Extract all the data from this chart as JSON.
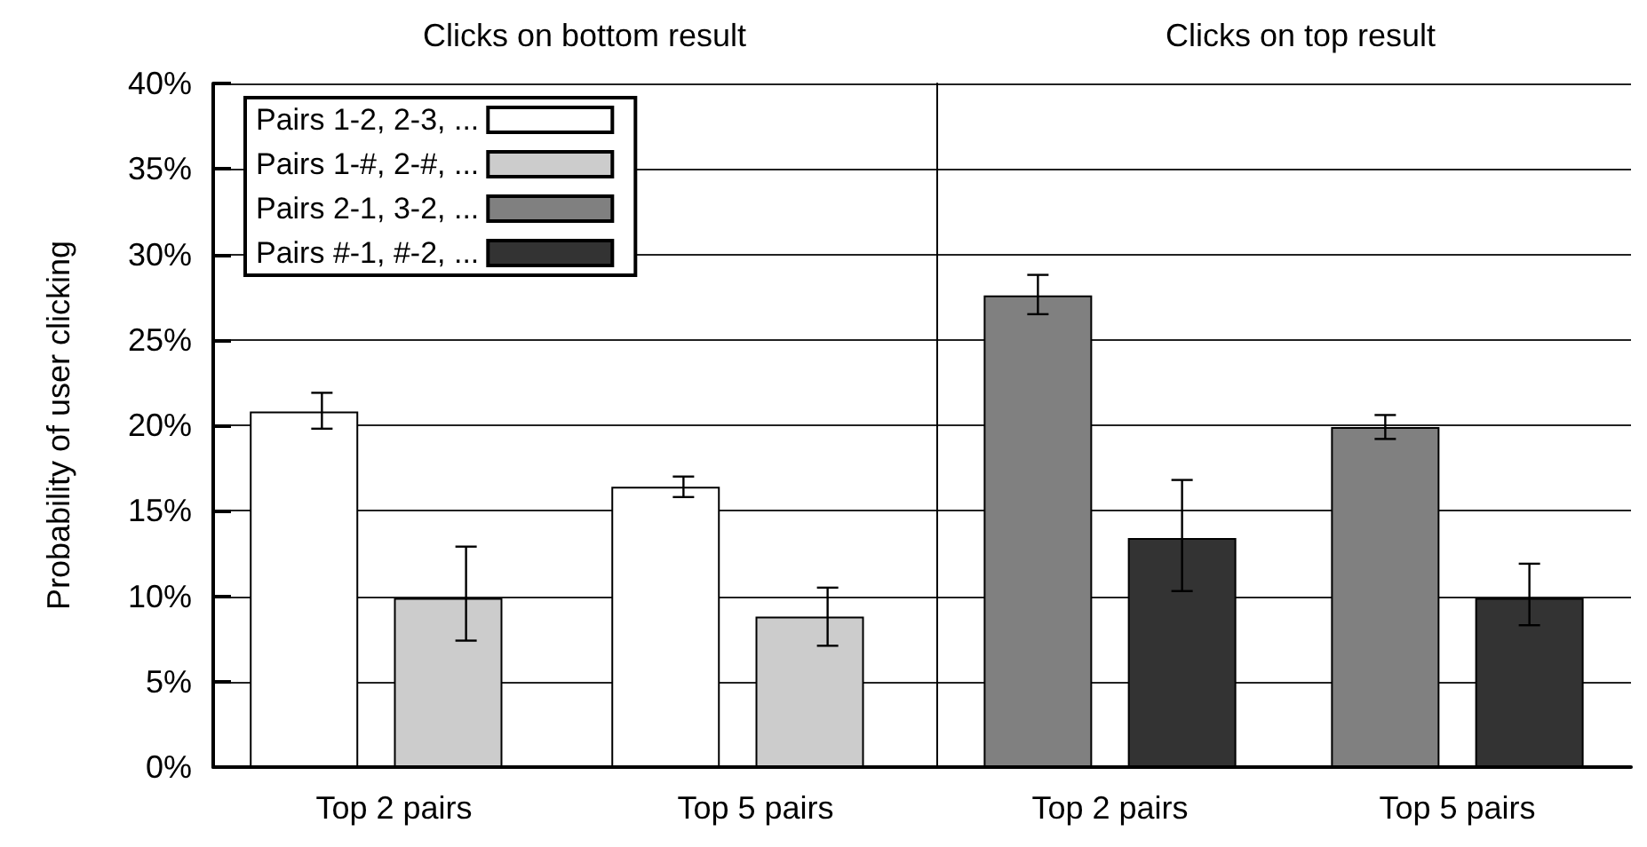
{
  "chart_data": [
    {
      "type": "bar",
      "title": "Clicks on bottom result",
      "ylabel": "Probability of user clicking",
      "categories": [
        "Top 2 pairs",
        "Top 5 pairs"
      ],
      "series": [
        {
          "name": "Pairs 1-2, 2-3, ...",
          "color": "#ffffff",
          "values": [
            20.8,
            16.4
          ],
          "errors": [
            [
              19.8,
              21.9
            ],
            [
              15.8,
              17.0
            ]
          ]
        },
        {
          "name": "Pairs 1-#, 2-#, ...",
          "color": "#cccccc",
          "values": [
            9.9,
            8.8
          ],
          "errors": [
            [
              7.4,
              12.9
            ],
            [
              7.1,
              10.5
            ]
          ]
        }
      ],
      "ylim": [
        0,
        40
      ],
      "yticks": [
        {
          "value": 0,
          "label": "0%"
        },
        {
          "value": 5,
          "label": "5%"
        },
        {
          "value": 10,
          "label": "10%"
        },
        {
          "value": 15,
          "label": "15%"
        },
        {
          "value": 20,
          "label": "20%"
        },
        {
          "value": 25,
          "label": "25%"
        },
        {
          "value": 30,
          "label": "30%"
        },
        {
          "value": 35,
          "label": "35%"
        },
        {
          "value": 40,
          "label": "40%"
        }
      ],
      "grid": "y",
      "legend": "top left"
    },
    {
      "type": "bar",
      "title": "Clicks on top result",
      "categories": [
        "Top 2 pairs",
        "Top 5 pairs"
      ],
      "series": [
        {
          "name": "Pairs 2-1, 3-2, ...",
          "color": "#808080",
          "values": [
            27.6,
            19.9
          ],
          "errors": [
            [
              26.5,
              28.8
            ],
            [
              19.2,
              20.6
            ]
          ]
        },
        {
          "name": "Pairs #-1, #-2, ...",
          "color": "#333333",
          "values": [
            13.4,
            9.9
          ],
          "errors": [
            [
              10.3,
              16.8
            ],
            [
              8.3,
              11.9
            ]
          ]
        }
      ],
      "ylim": [
        0,
        40
      ],
      "grid": "y",
      "legend": false,
      "tick_labels": "x"
    }
  ]
}
